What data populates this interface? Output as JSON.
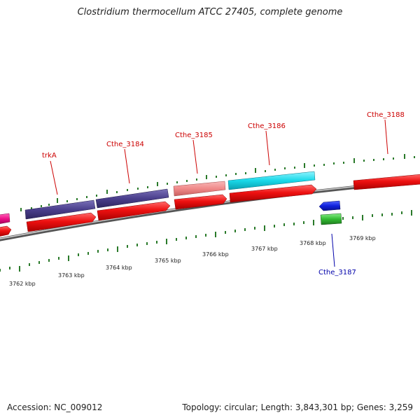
{
  "title": "Clostridium thermocellum ATCC 27405, complete genome",
  "accession": "Accession: NC_009012",
  "topology": "Topology: circular; Length: 3,843,301 bp; Genes: 3,259",
  "scale_labels": [
    "3762 kbp",
    "3763 kbp",
    "3764 kbp",
    "3765 kbp",
    "3766 kbp",
    "3767 kbp",
    "3768 kbp",
    "3769 kbp"
  ],
  "gene_labels": [
    {
      "id": "trkA",
      "text": "trkA",
      "color": "#cc0000"
    },
    {
      "id": "cthe-3184",
      "text": "Cthe_3184",
      "color": "#cc0000"
    },
    {
      "id": "cthe-3185",
      "text": "Cthe_3185",
      "color": "#cc0000"
    },
    {
      "id": "cthe-3186",
      "text": "Cthe_3186",
      "color": "#cc0000"
    },
    {
      "id": "cthe-3188",
      "text": "Cthe_3188",
      "color": "#cc0000"
    },
    {
      "id": "cthe-3187",
      "text": "Cthe_3187",
      "color": "#0000aa"
    }
  ],
  "colors": {
    "cds": "#ee1111",
    "feature_purple": "#4a3f8c",
    "feature_pink": "#f08a8a",
    "feature_cyan": "#19d8e8",
    "feature_blue": "#1122dd",
    "feature_green": "#33bb33",
    "feature_magenta": "#ee1188",
    "backbone": "#888888",
    "tick": "#2a7a2a"
  }
}
